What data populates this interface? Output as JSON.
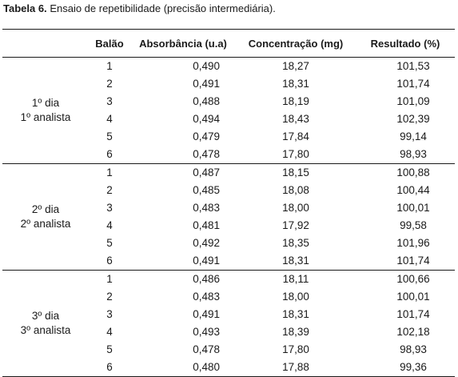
{
  "caption": {
    "label": "Tabela 6.",
    "text": "Ensaio de repetibilidade (precisão intermediária)."
  },
  "table": {
    "headers": [
      "",
      "Balão",
      "Absorbância (u.a)",
      "Concentração (mg)",
      "Resultado (%)"
    ],
    "groups": [
      {
        "line1": "1º dia",
        "line2": "1º analista",
        "rows": [
          [
            "1",
            "0,490",
            "18,27",
            "101,53"
          ],
          [
            "2",
            "0,491",
            "18,31",
            "101,74"
          ],
          [
            "3",
            "0,488",
            "18,19",
            "101,09"
          ],
          [
            "4",
            "0,494",
            "18,43",
            "102,39"
          ],
          [
            "5",
            "0,479",
            "17,84",
            "99,14"
          ],
          [
            "6",
            "0,478",
            "17,80",
            "98,93"
          ]
        ]
      },
      {
        "line1": "2º dia",
        "line2": "2º analista",
        "rows": [
          [
            "1",
            "0,487",
            "18,15",
            "100,88"
          ],
          [
            "2",
            "0,485",
            "18,08",
            "100,44"
          ],
          [
            "3",
            "0,483",
            "18,00",
            "100,01"
          ],
          [
            "4",
            "0,481",
            "17,92",
            "99,58"
          ],
          [
            "5",
            "0,492",
            "18,35",
            "101,96"
          ],
          [
            "6",
            "0,491",
            "18,31",
            "101,74"
          ]
        ]
      },
      {
        "line1": "3º dia",
        "line2": "3º analista",
        "rows": [
          [
            "1",
            "0,486",
            "18,11",
            "100,66"
          ],
          [
            "2",
            "0,483",
            "18,00",
            "100,01"
          ],
          [
            "3",
            "0,491",
            "18,31",
            "101,74"
          ],
          [
            "4",
            "0,493",
            "18,39",
            "102,18"
          ],
          [
            "5",
            "0,478",
            "17,80",
            "98,93"
          ],
          [
            "6",
            "0,480",
            "17,88",
            "99,36"
          ]
        ]
      }
    ]
  }
}
